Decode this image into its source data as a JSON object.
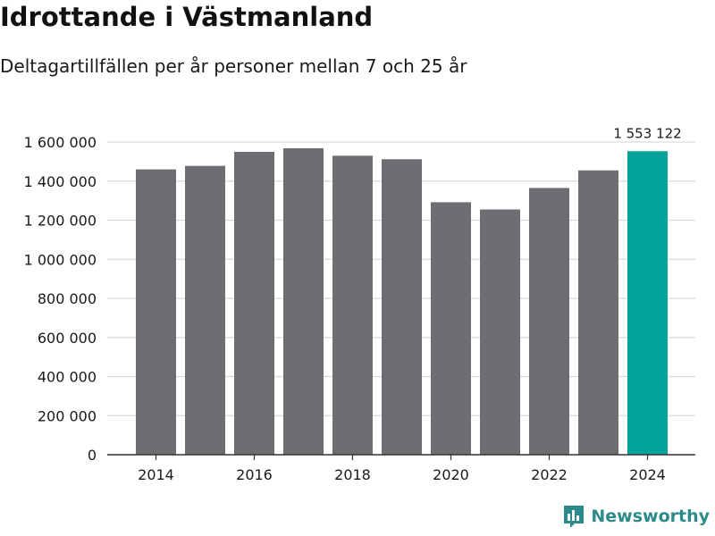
{
  "header": {
    "title": "Idrottande i Västmanland",
    "subtitle": "Deltagartillfällen per år personer mellan 7 och 25 år"
  },
  "brand": {
    "name": "Newsworthy"
  },
  "colors": {
    "bar": "#6e6d72",
    "highlight": "#00a39a",
    "grid": "#d9d9d9",
    "axis": "#333333",
    "brand": "#2c8a8a"
  },
  "chart_data": {
    "type": "bar",
    "title": "Idrottande i Västmanland",
    "subtitle": "Deltagartillfällen per år personer mellan 7 och 25 år",
    "xlabel": "",
    "ylabel": "",
    "categories": [
      "2014",
      "2015",
      "2016",
      "2017",
      "2018",
      "2019",
      "2020",
      "2021",
      "2022",
      "2023",
      "2024"
    ],
    "values": [
      1460000,
      1478000,
      1550000,
      1568000,
      1530000,
      1512000,
      1292000,
      1255000,
      1365000,
      1455000,
      1553122
    ],
    "highlight_index": 10,
    "highlight_label": "1 553 122",
    "ylim": [
      0,
      1600000
    ],
    "yticks": [
      0,
      200000,
      400000,
      600000,
      800000,
      1000000,
      1200000,
      1400000,
      1600000
    ],
    "ytick_labels": [
      "0",
      "200 000",
      "400 000",
      "600 000",
      "800 000",
      "1 000 000",
      "1 200 000",
      "1 400 000",
      "1 600 000"
    ],
    "xtick_labels": [
      "2014",
      "2016",
      "2018",
      "2020",
      "2022",
      "2024"
    ],
    "grid": true
  }
}
